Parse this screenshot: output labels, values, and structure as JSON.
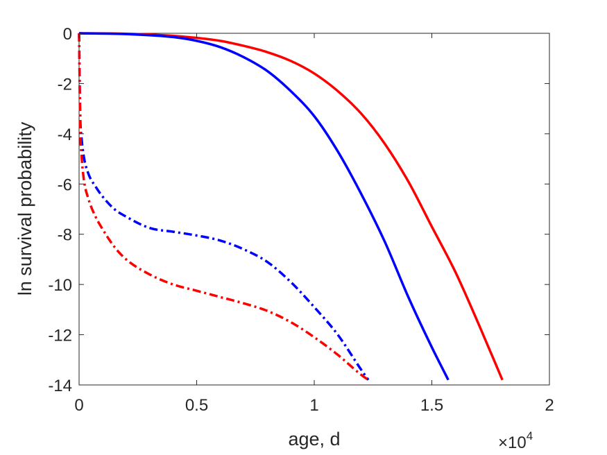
{
  "chart_data": {
    "type": "line",
    "xlabel": "age, d",
    "ylabel": "ln survival probability",
    "xlim": [
      0,
      20000
    ],
    "ylim": [
      -14,
      0
    ],
    "x_multiplier_base": "×10",
    "x_multiplier_exp": "4",
    "xticks": [
      0,
      5000,
      10000,
      15000,
      20000
    ],
    "xtick_labels": [
      "0",
      "0.5",
      "1",
      "1.5",
      "2"
    ],
    "yticks": [
      0,
      -2,
      -4,
      -6,
      -8,
      -10,
      -12,
      -14
    ],
    "ytick_labels": [
      "0",
      "-2",
      "-4",
      "-6",
      "-8",
      "-10",
      "-12",
      "-14"
    ],
    "grid": false,
    "legend": "none",
    "series": [
      {
        "color": "#ff0000",
        "style": "solid",
        "x": [
          0,
          2000,
          4000,
          6000,
          7000,
          8000,
          9000,
          10000,
          11000,
          12000,
          13000,
          14000,
          15000,
          16000,
          17000,
          18000
        ],
        "y": [
          0,
          -0.02,
          -0.1,
          -0.3,
          -0.5,
          -0.75,
          -1.1,
          -1.6,
          -2.3,
          -3.2,
          -4.4,
          -5.9,
          -7.7,
          -9.5,
          -11.6,
          -13.8
        ]
      },
      {
        "color": "#0000ff",
        "style": "solid",
        "x": [
          0,
          2000,
          4000,
          5000,
          6000,
          7000,
          8000,
          9000,
          10000,
          11000,
          12000,
          13000,
          14000,
          15000,
          15700
        ],
        "y": [
          0,
          -0.03,
          -0.15,
          -0.3,
          -0.55,
          -0.95,
          -1.5,
          -2.3,
          -3.3,
          -4.7,
          -6.4,
          -8.3,
          -10.5,
          -12.5,
          -13.8
        ]
      },
      {
        "color": "#0000ff",
        "style": "dashdot",
        "x": [
          0,
          50,
          100,
          200,
          400,
          700,
          1000,
          1500,
          2000,
          3000,
          4000,
          5000,
          6000,
          7000,
          8000,
          9000,
          10000,
          11000,
          12000,
          12300
        ],
        "y": [
          0,
          -3.3,
          -4.1,
          -4.9,
          -5.6,
          -6.1,
          -6.5,
          -7.0,
          -7.3,
          -7.75,
          -7.9,
          -8.05,
          -8.25,
          -8.6,
          -9.1,
          -9.9,
          -10.9,
          -12.0,
          -13.4,
          -13.8
        ]
      },
      {
        "color": "#ff0000",
        "style": "dashdot",
        "x": [
          0,
          50,
          100,
          200,
          400,
          700,
          1000,
          1500,
          2000,
          3000,
          4000,
          5000,
          6000,
          7000,
          8000,
          9000,
          10000,
          11000,
          12000,
          12300
        ],
        "y": [
          0,
          -3.8,
          -4.8,
          -5.8,
          -6.6,
          -7.3,
          -7.8,
          -8.5,
          -9.0,
          -9.6,
          -10.0,
          -10.25,
          -10.5,
          -10.75,
          -11.05,
          -11.5,
          -12.1,
          -12.8,
          -13.6,
          -13.8
        ]
      }
    ]
  }
}
